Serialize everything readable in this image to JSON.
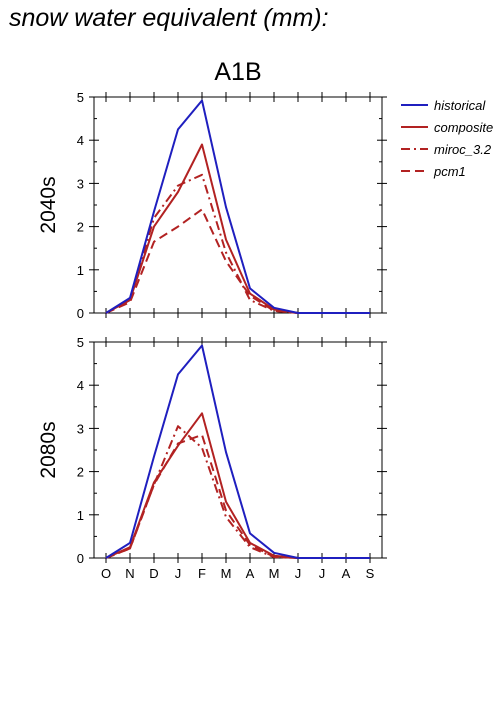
{
  "figure": {
    "title": "snow water equivalent (mm):",
    "scenario": "A1B"
  },
  "colors": {
    "historical": "#1f1fbf",
    "projection": "#b22222",
    "axis": "#000000"
  },
  "chart_data": [
    {
      "type": "line",
      "panel_label": "2040s",
      "scenario": "A1B",
      "categories": [
        "O",
        "N",
        "D",
        "J",
        "F",
        "M",
        "A",
        "M",
        "J",
        "J",
        "A",
        "S"
      ],
      "ylim": [
        0,
        5
      ],
      "yticks": [
        0,
        1,
        2,
        3,
        4,
        5
      ],
      "grid": false,
      "legend_position": "right",
      "series": [
        {
          "name": "historical",
          "color": "#1f1fbf",
          "dash": "solid",
          "values": [
            0,
            0.35,
            2.35,
            4.25,
            4.92,
            2.45,
            0.57,
            0.12,
            0,
            0,
            0,
            0
          ]
        },
        {
          "name": "composite",
          "color": "#b22222",
          "dash": "solid",
          "values": [
            0,
            0.3,
            2.0,
            2.8,
            3.9,
            1.7,
            0.45,
            0.08,
            0,
            0,
            0,
            0
          ]
        },
        {
          "name": "miroc_3.2",
          "color": "#b22222",
          "dash": "dashdot",
          "values": [
            0,
            0.3,
            2.2,
            2.95,
            3.2,
            1.4,
            0.3,
            0.05,
            0,
            0,
            0,
            0
          ]
        },
        {
          "name": "pcm1",
          "color": "#b22222",
          "dash": "dash",
          "values": [
            0,
            0.25,
            1.65,
            2.0,
            2.4,
            1.2,
            0.4,
            0.05,
            0,
            0,
            0,
            0
          ]
        }
      ]
    },
    {
      "type": "line",
      "panel_label": "2080s",
      "categories": [
        "O",
        "N",
        "D",
        "J",
        "F",
        "M",
        "A",
        "M",
        "J",
        "J",
        "A",
        "S"
      ],
      "ylim": [
        0,
        5
      ],
      "yticks": [
        0,
        1,
        2,
        3,
        4,
        5
      ],
      "grid": false,
      "series": [
        {
          "name": "historical",
          "color": "#1f1fbf",
          "dash": "solid",
          "values": [
            0,
            0.35,
            2.35,
            4.25,
            4.92,
            2.45,
            0.57,
            0.12,
            0,
            0,
            0,
            0
          ]
        },
        {
          "name": "composite",
          "color": "#b22222",
          "dash": "solid",
          "values": [
            0,
            0.25,
            1.75,
            2.6,
            3.35,
            1.3,
            0.35,
            0.05,
            0,
            0,
            0,
            0
          ]
        },
        {
          "name": "miroc_3.2",
          "color": "#b22222",
          "dash": "dashdot",
          "values": [
            0,
            0.22,
            1.7,
            3.05,
            2.55,
            0.95,
            0.25,
            0.02,
            0,
            0,
            0,
            0
          ]
        },
        {
          "name": "pcm1",
          "color": "#b22222",
          "dash": "dash",
          "values": [
            0,
            0.22,
            1.7,
            2.65,
            2.85,
            1.1,
            0.3,
            0.03,
            0,
            0,
            0,
            0
          ]
        }
      ]
    }
  ]
}
